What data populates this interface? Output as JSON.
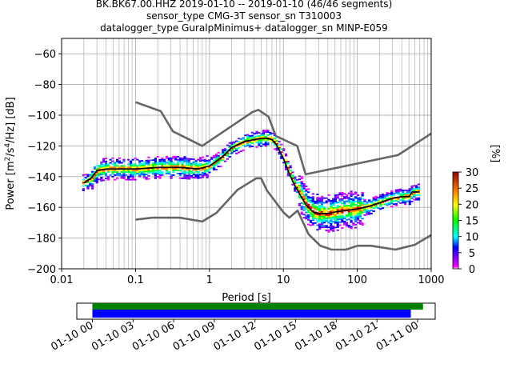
{
  "title_lines": [
    "BK.BK67.00.HHZ   2019-01-10 -- 2019-01-10  (46/46 segments)",
    "sensor_type CMG-3T sensor_sn T310003",
    "datalogger_type GuralpMinimus+ datalogger_sn MINP-E059"
  ],
  "colors": {
    "noise_model": "#666666",
    "mode_line": "#000000",
    "coverage_data": "#008000",
    "coverage_psd": "#0000ff",
    "grid": "#b0b0b0"
  },
  "chart_data": [
    {
      "type": "heatmap",
      "subtype": "probabilistic power spectral density",
      "xlabel": "Period [s]",
      "ylabel": "Power [m²/s⁴/Hz] [dB]",
      "ylabel_parts": {
        "pre": "Power [m",
        "sup1": "2",
        "mid": "/s",
        "sup2": "4",
        "post": "/Hz] [dB]"
      },
      "xscale": "log",
      "xlim": [
        0.01,
        1000
      ],
      "ylim": [
        -200,
        -50
      ],
      "xticks": [
        0.01,
        0.1,
        1,
        10,
        100,
        1000
      ],
      "xtick_labels": [
        "0.01",
        "0.1",
        "1",
        "10",
        "100",
        "1000"
      ],
      "yticks": [
        -200,
        -180,
        -160,
        -140,
        -120,
        -100,
        -80,
        -60
      ],
      "ytick_labels": [
        "−200",
        "−180",
        "−160",
        "−140",
        "−120",
        "−100",
        "−80",
        "−60"
      ],
      "grid": "on",
      "colorbar": {
        "label": "[%]",
        "range": [
          0,
          30
        ],
        "ticks": [
          0,
          5,
          10,
          15,
          20,
          25,
          30
        ],
        "tick_labels": [
          "0",
          "5",
          "10",
          "15",
          "20",
          "25",
          "30"
        ]
      },
      "series": [
        {
          "role": "high-noise-model",
          "x": [
            0.1,
            0.22,
            0.32,
            0.8,
            3.8,
            4.6,
            6.3,
            7.9,
            15.4,
            20,
            354.8,
            1000
          ],
          "y": [
            -91.5,
            -97.4,
            -110.5,
            -120,
            -98,
            -96.5,
            -101,
            -113.5,
            -120,
            -138.5,
            -126,
            -112
          ]
        },
        {
          "role": "low-noise-model",
          "x": [
            0.1,
            0.17,
            0.4,
            0.8,
            1.24,
            2.4,
            4.3,
            5,
            6,
            10,
            12,
            15.6,
            21.9,
            31.6,
            45,
            70,
            101,
            154,
            328,
            600,
            1000
          ],
          "y": [
            -168,
            -166.7,
            -166.7,
            -169.2,
            -163.7,
            -148.6,
            -141.1,
            -141.1,
            -149,
            -163.2,
            -166.7,
            -162.1,
            -177.5,
            -185,
            -187.5,
            -187.5,
            -185,
            -185,
            -187.5,
            -184.4,
            -178
          ]
        },
        {
          "role": "mode",
          "x": [
            0.02,
            0.025,
            0.03,
            0.04,
            0.06,
            0.1,
            0.2,
            0.4,
            0.7,
            1,
            1.5,
            2,
            3,
            4,
            5,
            6,
            7,
            8,
            10,
            12,
            14,
            16,
            20,
            25,
            30,
            40,
            50,
            70,
            100,
            150,
            200,
            300,
            400,
            500,
            550,
            700
          ],
          "y": [
            -144,
            -141,
            -136,
            -135,
            -135,
            -135,
            -134,
            -134,
            -135,
            -133,
            -127,
            -121,
            -117,
            -116,
            -115,
            -115,
            -116,
            -119,
            -128,
            -138,
            -145,
            -150,
            -158,
            -163,
            -164,
            -164,
            -163,
            -162,
            -161,
            -159,
            -157,
            -154,
            -153,
            -153,
            -150,
            -150
          ]
        }
      ]
    },
    {
      "type": "bar",
      "subtype": "data coverage timeline",
      "xtick_labels": [
        "01-10 00",
        "01-10 03",
        "01-10 06",
        "01-10 09",
        "01-10 12",
        "01-10 15",
        "01-10 18",
        "01-10 21",
        "01-11 00"
      ],
      "xtick_hours": [
        0,
        3,
        6,
        9,
        12,
        15,
        18,
        21,
        24
      ],
      "xlim_hours": [
        -1.15,
        25.3
      ],
      "series": [
        {
          "role": "data availability",
          "start_hour": 0,
          "end_hour": 24.4
        },
        {
          "role": "psd segments",
          "start_hour": 0,
          "end_hour": 23.5
        }
      ]
    }
  ]
}
